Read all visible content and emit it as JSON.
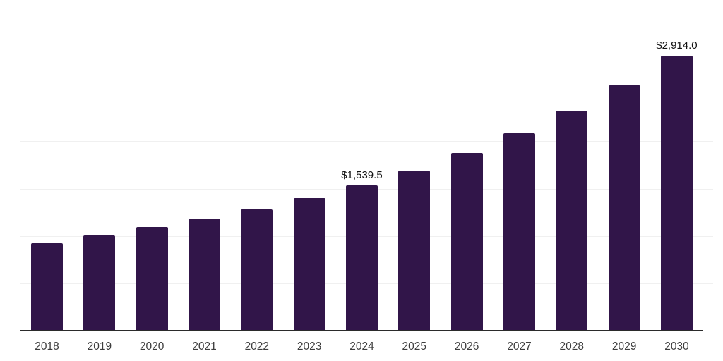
{
  "chart_data": {
    "type": "bar",
    "title": "",
    "xlabel": "",
    "ylabel": "",
    "categories": [
      "2018",
      "2019",
      "2020",
      "2021",
      "2022",
      "2023",
      "2024",
      "2025",
      "2026",
      "2027",
      "2028",
      "2029",
      "2030"
    ],
    "values": [
      930,
      1015,
      1100,
      1195,
      1285,
      1410,
      1539.5,
      1700,
      1885,
      2095,
      2330,
      2600,
      2914
    ],
    "data_labels": [
      "",
      "",
      "",
      "",
      "",
      "",
      "$1,539.5",
      "",
      "",
      "",
      "",
      "",
      "$2,914.0"
    ],
    "ylim": [
      0,
      3500
    ],
    "gridline_step": 500,
    "grid": "horizontal",
    "legend": "none",
    "colors": {
      "bar": "#311549",
      "gridline": "#f0f0f0",
      "axis_line": "#2b2b2b",
      "tick_label": "#3d3d3d",
      "data_label": "#121212",
      "background": "#ffffff"
    }
  }
}
